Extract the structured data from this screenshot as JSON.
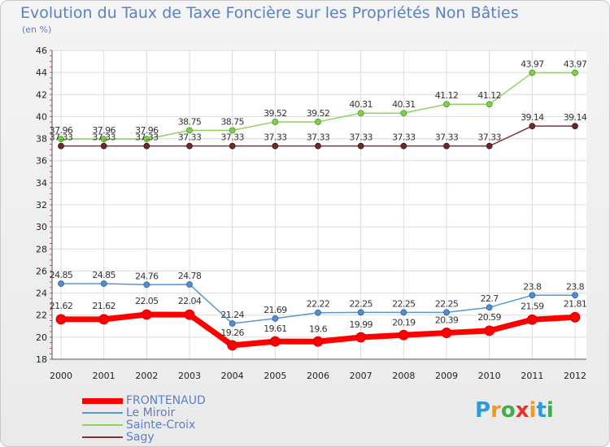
{
  "chart_data": {
    "type": "line",
    "title": "Evolution du Taux de Taxe Foncière sur les Propriétés Non Bâties",
    "unit_label": "(en %)",
    "ylim": [
      18,
      46
    ],
    "y_ticks": [
      18,
      20,
      22,
      24,
      26,
      28,
      30,
      32,
      34,
      36,
      38,
      40,
      42,
      44,
      46
    ],
    "categories": [
      "2000",
      "2001",
      "2002",
      "2003",
      "2004",
      "2005",
      "2006",
      "2007",
      "2008",
      "2009",
      "2010",
      "2011",
      "2012"
    ],
    "grid": true,
    "legend_position": "bottom-left",
    "series": [
      {
        "name": "FRONTENAUD",
        "color": "#ff0000",
        "values": [
          21.62,
          21.62,
          22.05,
          22.04,
          19.26,
          19.61,
          19.6,
          19.99,
          20.19,
          20.39,
          20.59,
          21.59,
          21.81
        ],
        "labels": [
          "21.62",
          "21.62",
          "22.05",
          "22.04",
          "19.26",
          "19.61",
          "19.6",
          "19.99",
          "20.19",
          "20.39",
          "20.59",
          "21.59",
          "21.81"
        ]
      },
      {
        "name": "Le Miroir",
        "color": "#5b96cf",
        "values": [
          24.85,
          24.85,
          24.76,
          24.78,
          21.24,
          21.69,
          22.22,
          22.25,
          22.25,
          22.25,
          22.7,
          23.8,
          23.8
        ],
        "labels": [
          "24.85",
          "24.85",
          "24.76",
          "24.78",
          "21.24",
          "21.69",
          "22.22",
          "22.25",
          "22.25",
          "22.25",
          "22.7",
          "23.8",
          "23.8"
        ]
      },
      {
        "name": "Sainte-Croix",
        "color": "#8ed45a",
        "values": [
          37.96,
          37.96,
          37.96,
          38.75,
          38.75,
          39.52,
          39.52,
          40.31,
          40.31,
          41.12,
          41.12,
          43.97,
          43.97
        ],
        "labels": [
          "37.96",
          "37.96",
          "37.96",
          "38.75",
          "38.75",
          "39.52",
          "39.52",
          "40.31",
          "40.31",
          "41.12",
          "41.12",
          "43.97",
          "43.97"
        ]
      },
      {
        "name": "Sagy",
        "color": "#7b3535",
        "values": [
          37.33,
          37.33,
          37.33,
          37.33,
          37.33,
          37.33,
          37.33,
          37.33,
          37.33,
          37.33,
          37.33,
          39.14,
          39.14
        ],
        "labels": [
          "37.33",
          "37.33",
          "37.33",
          "37.33",
          "37.33",
          "37.33",
          "37.33",
          "37.33",
          "37.33",
          "37.33",
          "37.33",
          "39.14",
          "39.14"
        ]
      }
    ]
  },
  "brand": {
    "letters": [
      "P",
      "r",
      "o",
      "x",
      "i",
      "t",
      "i"
    ],
    "colors": [
      "#2f9bd6",
      "#f39a1e",
      "#3fae49",
      "#e5332a",
      "#f39a1e",
      "#2f9bd6",
      "#3fae49"
    ]
  }
}
